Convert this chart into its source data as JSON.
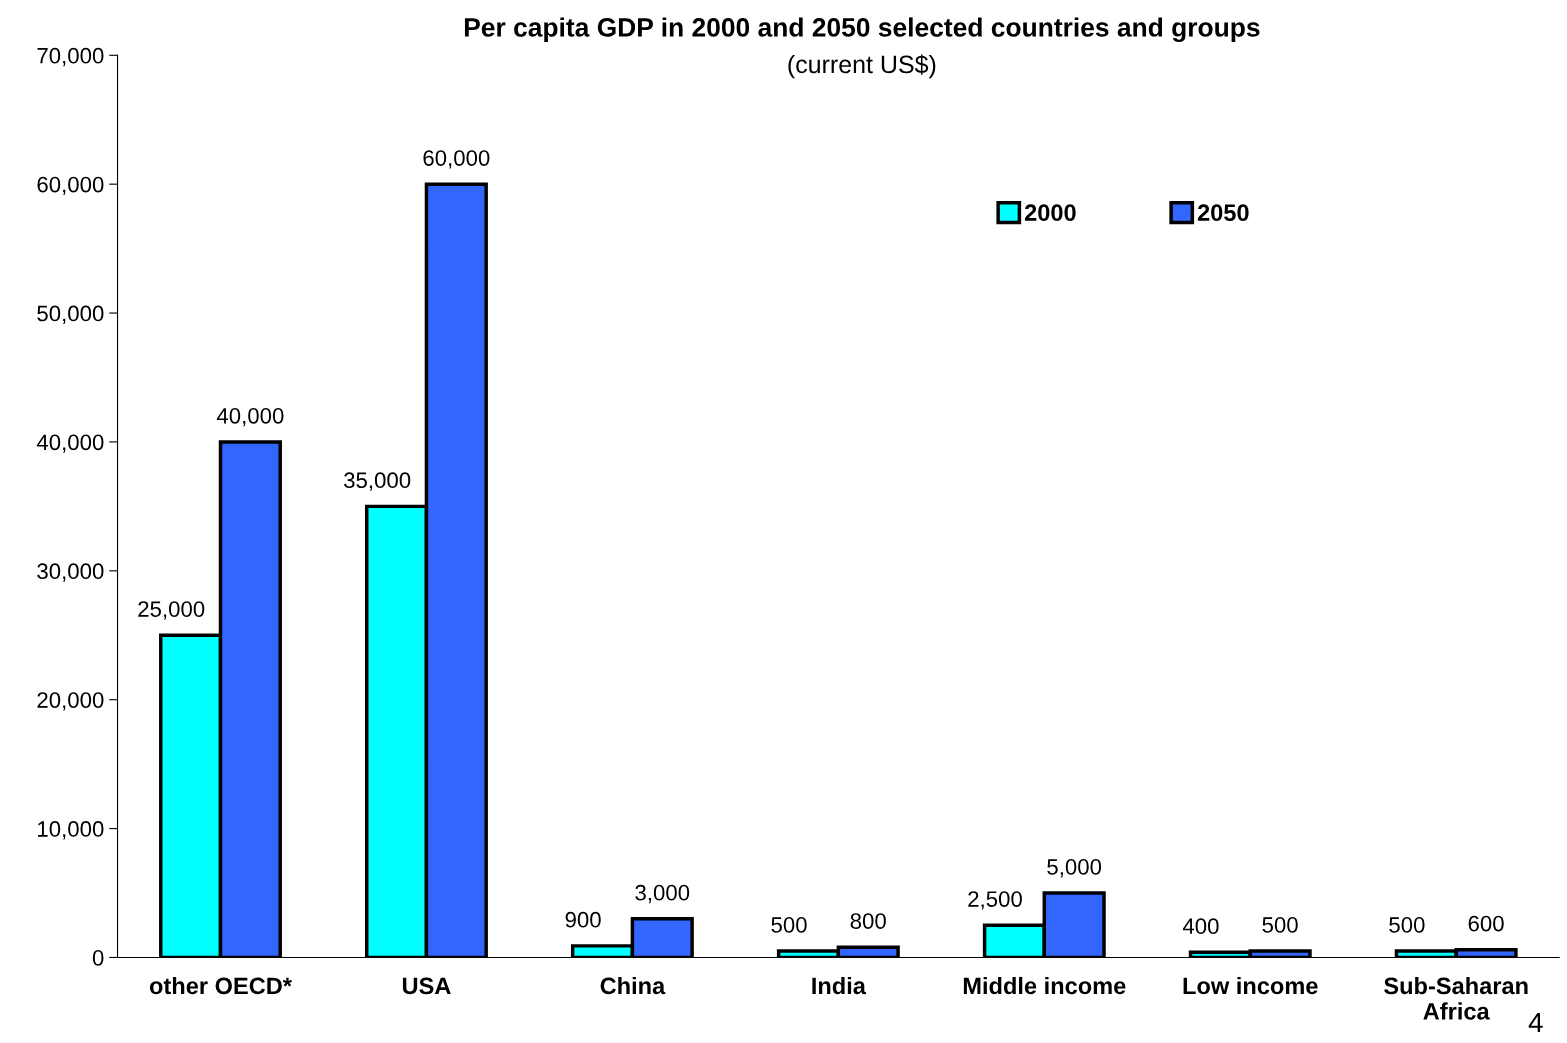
{
  "chart_data": {
    "type": "bar",
    "title": "Per capita GDP in 2000 and 2050 selected countries and groups",
    "subtitle": "(current US$)",
    "categories": [
      "other OECD*",
      "USA",
      "China",
      "India",
      "Middle income",
      "Low income",
      "Sub-Saharan\nAfrica"
    ],
    "series": [
      {
        "name": "2000",
        "color": "#00ffff",
        "values": [
          25000,
          35000,
          900,
          500,
          2500,
          400,
          500
        ],
        "value_labels": [
          "25,000",
          "35,000",
          "900",
          "500",
          "2,500",
          "400",
          "500"
        ]
      },
      {
        "name": "2050",
        "color": "#3366ff",
        "values": [
          40000,
          60000,
          3000,
          800,
          5000,
          500,
          600
        ],
        "value_labels": [
          "40,000",
          "60,000",
          "3,000",
          "800",
          "5,000",
          "500",
          "600"
        ]
      }
    ],
    "ylim": [
      0,
      70000
    ],
    "yticks": [
      0,
      {
        "value": 10000,
        "label": "10,000"
      },
      {
        "value": 20000,
        "label": "20,000"
      },
      {
        "value": 30000,
        "label": "30,000"
      },
      {
        "value": 40000,
        "label": "40,000"
      },
      {
        "value": 50000,
        "label": "50,000"
      },
      {
        "value": 60000,
        "label": "60,000"
      },
      {
        "value": 70000,
        "label": "70,000"
      }
    ],
    "grid": false,
    "legend": "top right",
    "annotations": [
      "4"
    ]
  }
}
